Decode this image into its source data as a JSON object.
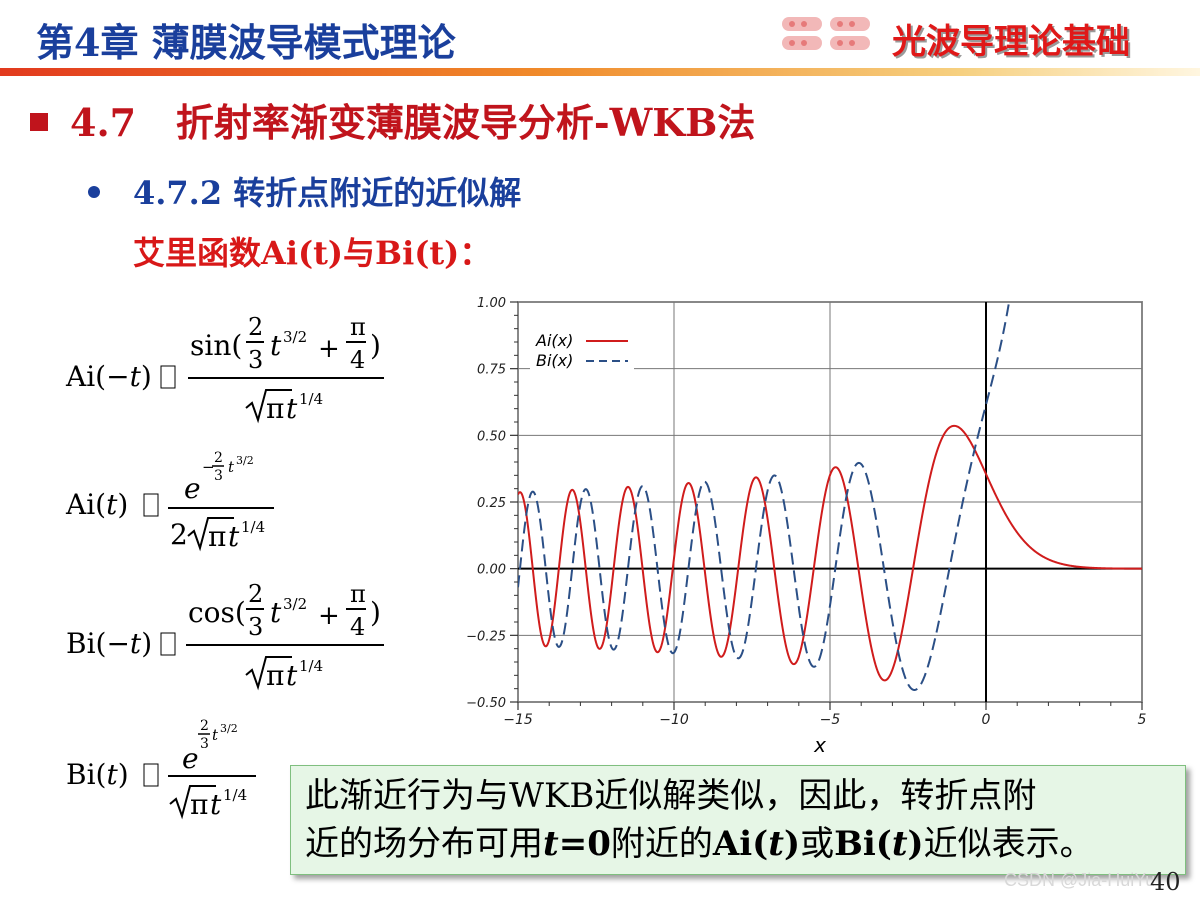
{
  "header": {
    "chapter_title": "第4章 薄膜波导模式理论",
    "course_title": "光波导理论基础"
  },
  "section": {
    "number": "4.7",
    "title": "折射率渐变薄膜波导分析-WKB法"
  },
  "subsection": {
    "number": "4.7.2",
    "title": "转折点附近的近似解"
  },
  "airy_intro": "艾里函数Ai(t)与Bi(t)：",
  "formulas": [
    {
      "lhs": "Ai(−t)",
      "rel": "",
      "numerator": "sin(2/3 t^3/2 + π/4)",
      "denominator": "√π t^1/4"
    },
    {
      "lhs": "Ai(t)",
      "rel": "",
      "numerator": "e^(−2/3 t^3/2)",
      "denominator": "2√π t^1/4"
    },
    {
      "lhs": "Bi(−t)",
      "rel": "",
      "numerator": "cos(2/3 t^3/2 + π/4)",
      "denominator": "√π t^1/4"
    },
    {
      "lhs": "Bi(t)",
      "rel": "",
      "numerator": "e^(2/3 t^3/2)",
      "denominator": "√π t^1/4"
    }
  ],
  "chart_data": {
    "type": "line",
    "xlabel": "x",
    "ylabel": "",
    "xlim": [
      -15,
      5
    ],
    "ylim": [
      -0.5,
      1.0
    ],
    "x_ticks": [
      "−15",
      "−10",
      "−5",
      "0",
      "5"
    ],
    "y_ticks": [
      "1.00",
      "0.75",
      "0.50",
      "0.25",
      "0.00",
      "−0.25",
      "−0.50"
    ],
    "grid": true,
    "legend_position": "top-left",
    "series": [
      {
        "name": "Ai(x)",
        "color": "#d01c1c",
        "style": "solid",
        "function": "airy_ai"
      },
      {
        "name": "Bi(x)",
        "color": "#2b4f86",
        "style": "dashed",
        "function": "airy_bi"
      }
    ],
    "reference_values": {
      "Ai_max": {
        "x": -1.0,
        "y": 0.54
      },
      "Bi_at_0": {
        "x": 0,
        "y": 0.61
      },
      "Bi_min": {
        "x": -2.3,
        "y": -0.45
      }
    }
  },
  "note": {
    "line1": "此渐近行为与WKB近似解类似，因此，转折点附",
    "line2_parts": [
      "近的场分布可用",
      "t",
      "=0",
      "附近的",
      "Ai(",
      "t",
      ")",
      "或",
      "Bi(",
      "t",
      ")",
      "近似表示。"
    ]
  },
  "page_number": "40",
  "watermark": "CSDN @Jia-HuiYu",
  "colors": {
    "blue": "#1a3f9c",
    "red": "#d81818",
    "ai_curve": "#d01c1c",
    "bi_curve": "#2b4f86",
    "note_bg": "#e6f6e6"
  }
}
